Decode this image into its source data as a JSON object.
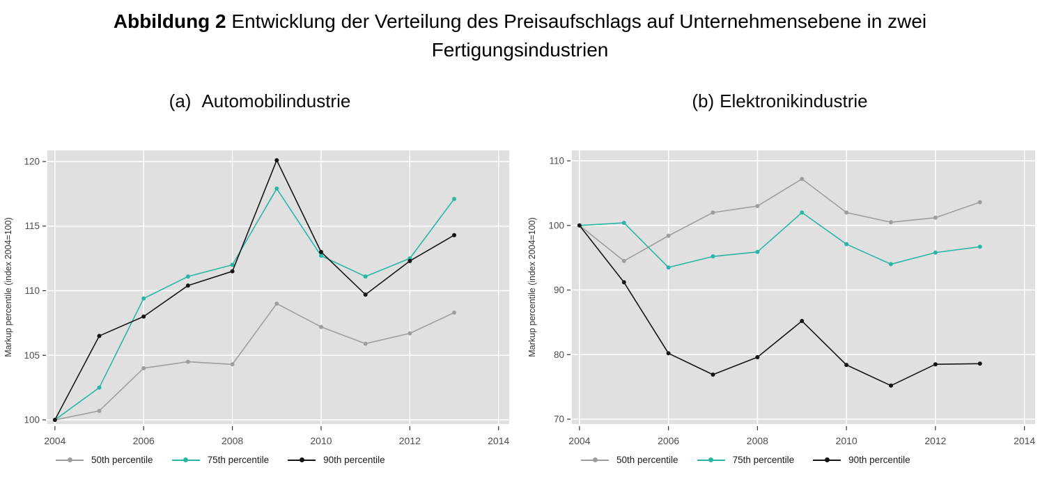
{
  "figure": {
    "title_bold": "Abbildung 2",
    "title_rest": " Entwicklung der Verteilung des Preisaufschlags auf Unternehmensebene in zwei",
    "title_line2": "Fertigungsindustrien"
  },
  "charts": [
    {
      "label_prefix": "(a)",
      "label_name": "Automobilindustrie"
    },
    {
      "label_prefix": "(b)",
      "label_name": "Elektronikindustrie"
    }
  ],
  "legend": {
    "items": [
      {
        "label": "50th percentile",
        "color": "#9e9e9e"
      },
      {
        "label": "75th percentile",
        "color": "#29b6a5"
      },
      {
        "label": "90th percentile",
        "color": "#141414"
      }
    ]
  },
  "colors": {
    "panel_bg": "#e0e0e0",
    "grid": "#ffffff",
    "tick_mark": "#333333",
    "tick_text": "#4d4d4d",
    "axis_label_text": "#333333"
  },
  "chart_data": [
    {
      "type": "line",
      "title": "(a) Automobilindustrie",
      "xlabel": "",
      "ylabel": "Markup percentile (index 2004=100)",
      "x": [
        2004,
        2005,
        2006,
        2007,
        2008,
        2009,
        2010,
        2011,
        2012,
        2013
      ],
      "series": [
        {
          "name": "50th percentile",
          "color": "#9e9e9e",
          "values": [
            100,
            100.7,
            104.0,
            104.5,
            104.3,
            109.0,
            107.2,
            105.9,
            106.7,
            108.3
          ]
        },
        {
          "name": "75th percentile",
          "color": "#29b6a5",
          "values": [
            100,
            102.5,
            109.4,
            111.1,
            112.0,
            117.9,
            112.7,
            111.1,
            112.5,
            117.1
          ]
        },
        {
          "name": "90th percentile",
          "color": "#141414",
          "values": [
            100,
            106.5,
            108.0,
            110.4,
            111.5,
            120.1,
            113.0,
            109.7,
            112.3,
            114.3
          ]
        }
      ],
      "xticks": [
        2004,
        2006,
        2008,
        2010,
        2012,
        2014
      ],
      "yticks": [
        100,
        105,
        110,
        115,
        120
      ],
      "xlim": [
        2003.83,
        2014.24
      ],
      "ylim": [
        99.68,
        120.86
      ],
      "grid": "major-white",
      "legend_position": "bottom"
    },
    {
      "type": "line",
      "title": "(b) Elektronikindustrie",
      "xlabel": "",
      "ylabel": "Markup percentile (index 2004=100)",
      "x": [
        2004,
        2005,
        2006,
        2007,
        2008,
        2009,
        2010,
        2011,
        2012,
        2013
      ],
      "series": [
        {
          "name": "50th percentile",
          "color": "#9e9e9e",
          "values": [
            100,
            94.5,
            98.4,
            102.0,
            103.0,
            107.2,
            102.0,
            100.5,
            101.2,
            103.6
          ]
        },
        {
          "name": "75th percentile",
          "color": "#29b6a5",
          "values": [
            100,
            100.4,
            93.5,
            95.2,
            95.9,
            102.0,
            97.1,
            94.0,
            95.8,
            96.7
          ]
        },
        {
          "name": "90th percentile",
          "color": "#141414",
          "values": [
            100,
            91.2,
            80.2,
            76.9,
            79.6,
            85.2,
            78.4,
            75.2,
            78.5,
            78.6
          ]
        }
      ],
      "xticks": [
        2004,
        2006,
        2008,
        2010,
        2012,
        2014
      ],
      "yticks": [
        70,
        80,
        90,
        100,
        110
      ],
      "xlim": [
        2003.83,
        2014.24
      ],
      "ylim": [
        69.25,
        111.62
      ],
      "grid": "major-white",
      "legend_position": "bottom"
    }
  ]
}
